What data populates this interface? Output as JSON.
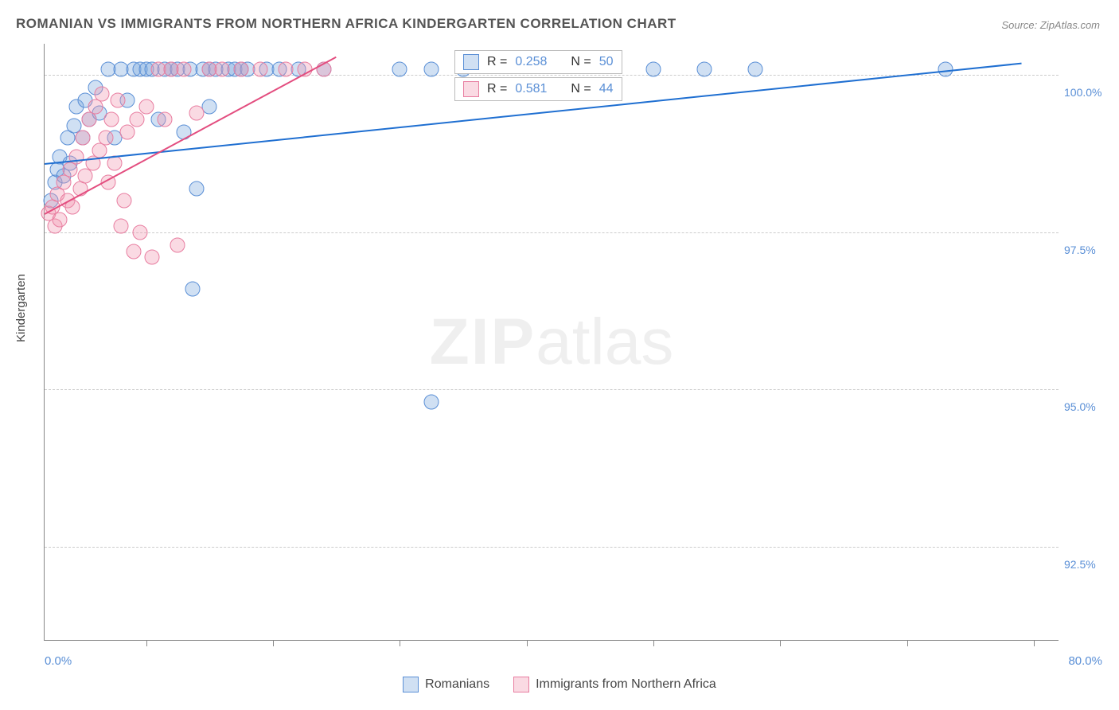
{
  "title": "ROMANIAN VS IMMIGRANTS FROM NORTHERN AFRICA KINDERGARTEN CORRELATION CHART",
  "source_label": "Source: ZipAtlas.com",
  "watermark_zip": "ZIP",
  "watermark_atlas": "atlas",
  "y_axis_title": "Kindergarten",
  "chart": {
    "type": "scatter",
    "xlim": [
      0,
      80
    ],
    "ylim": [
      91,
      100.5
    ],
    "x_min_label": "0.0%",
    "x_max_label": "80.0%",
    "x_tick_positions": [
      8,
      18,
      28,
      38,
      48,
      58,
      68,
      78
    ],
    "y_ticks": [
      {
        "v": 100.0,
        "label": "100.0%"
      },
      {
        "v": 97.5,
        "label": "97.5%"
      },
      {
        "v": 95.0,
        "label": "95.0%"
      },
      {
        "v": 92.5,
        "label": "92.5%"
      }
    ],
    "grid_color": "#cccccc",
    "background_color": "#ffffff",
    "series": [
      {
        "name": "Romanians",
        "fill": "rgba(120,165,220,0.35)",
        "stroke": "#5a8fd6",
        "trend_color": "#1f6fd1",
        "R": "0.258",
        "N": "50",
        "trend": {
          "x1": 0,
          "y1": 98.6,
          "x2": 77,
          "y2": 100.2
        },
        "points": [
          [
            0.5,
            98.0
          ],
          [
            0.8,
            98.3
          ],
          [
            1.0,
            98.5
          ],
          [
            1.2,
            98.7
          ],
          [
            1.5,
            98.4
          ],
          [
            1.8,
            99.0
          ],
          [
            2.0,
            98.6
          ],
          [
            2.3,
            99.2
          ],
          [
            2.5,
            99.5
          ],
          [
            3.0,
            99.0
          ],
          [
            3.2,
            99.6
          ],
          [
            3.5,
            99.3
          ],
          [
            4.0,
            99.8
          ],
          [
            4.3,
            99.4
          ],
          [
            5.0,
            100.1
          ],
          [
            5.5,
            99.0
          ],
          [
            6.0,
            100.1
          ],
          [
            6.5,
            99.6
          ],
          [
            7.0,
            100.1
          ],
          [
            7.5,
            100.1
          ],
          [
            8.0,
            100.1
          ],
          [
            8.5,
            100.1
          ],
          [
            9.0,
            99.3
          ],
          [
            9.5,
            100.1
          ],
          [
            10.0,
            100.1
          ],
          [
            10.5,
            100.1
          ],
          [
            11.0,
            99.1
          ],
          [
            11.5,
            100.1
          ],
          [
            12.0,
            98.2
          ],
          [
            12.5,
            100.1
          ],
          [
            13.0,
            100.1
          ],
          [
            13.5,
            100.1
          ],
          [
            14.5,
            100.1
          ],
          [
            15.0,
            100.1
          ],
          [
            15.5,
            100.1
          ],
          [
            16.0,
            100.1
          ],
          [
            17.5,
            100.1
          ],
          [
            18.5,
            100.1
          ],
          [
            20.0,
            100.1
          ],
          [
            22.0,
            100.1
          ],
          [
            11.7,
            96.6
          ],
          [
            28.0,
            100.1
          ],
          [
            30.5,
            100.1
          ],
          [
            33.0,
            100.1
          ],
          [
            48.0,
            100.1
          ],
          [
            52.0,
            100.1
          ],
          [
            56.0,
            100.1
          ],
          [
            71.0,
            100.1
          ],
          [
            30.5,
            94.8
          ],
          [
            13.0,
            99.5
          ]
        ]
      },
      {
        "name": "Immigrants from Northern Africa",
        "fill": "rgba(240,150,175,0.35)",
        "stroke": "#e87da0",
        "trend_color": "#e34d7f",
        "R": "0.581",
        "N": "44",
        "trend": {
          "x1": 0,
          "y1": 97.8,
          "x2": 23,
          "y2": 100.3
        },
        "points": [
          [
            0.3,
            97.8
          ],
          [
            0.6,
            97.9
          ],
          [
            0.8,
            97.6
          ],
          [
            1.0,
            98.1
          ],
          [
            1.2,
            97.7
          ],
          [
            1.5,
            98.3
          ],
          [
            1.8,
            98.0
          ],
          [
            2.0,
            98.5
          ],
          [
            2.2,
            97.9
          ],
          [
            2.5,
            98.7
          ],
          [
            2.8,
            98.2
          ],
          [
            3.0,
            99.0
          ],
          [
            3.2,
            98.4
          ],
          [
            3.5,
            99.3
          ],
          [
            3.8,
            98.6
          ],
          [
            4.0,
            99.5
          ],
          [
            4.3,
            98.8
          ],
          [
            4.5,
            99.7
          ],
          [
            4.8,
            99.0
          ],
          [
            5.0,
            98.3
          ],
          [
            5.3,
            99.3
          ],
          [
            5.5,
            98.6
          ],
          [
            5.8,
            99.6
          ],
          [
            6.0,
            97.6
          ],
          [
            6.3,
            98.0
          ],
          [
            6.5,
            99.1
          ],
          [
            7.0,
            97.2
          ],
          [
            7.3,
            99.3
          ],
          [
            7.5,
            97.5
          ],
          [
            8.0,
            99.5
          ],
          [
            8.5,
            97.1
          ],
          [
            9.0,
            100.1
          ],
          [
            9.5,
            99.3
          ],
          [
            10.0,
            100.1
          ],
          [
            10.5,
            97.3
          ],
          [
            11.0,
            100.1
          ],
          [
            12.0,
            99.4
          ],
          [
            13.0,
            100.1
          ],
          [
            14.0,
            100.1
          ],
          [
            15.5,
            100.1
          ],
          [
            17.0,
            100.1
          ],
          [
            19.0,
            100.1
          ],
          [
            20.5,
            100.1
          ],
          [
            22.0,
            100.1
          ]
        ]
      }
    ]
  },
  "stat_legend": {
    "R_label": "R =",
    "N_label": "N ="
  }
}
